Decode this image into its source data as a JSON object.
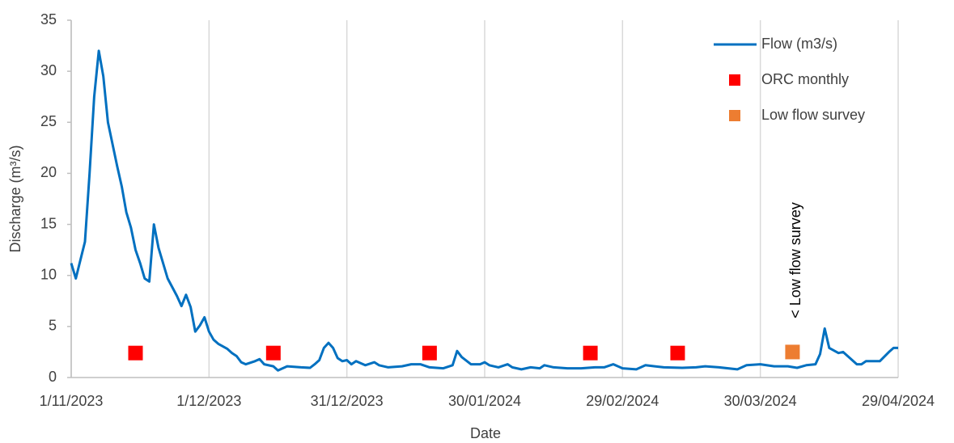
{
  "chart_data": {
    "type": "line",
    "x_label": "Date",
    "y_label": "Discharge (m³/s)",
    "annotation": "< Low flow survey",
    "xlim": [
      "2023-11-01",
      "2024-04-29"
    ],
    "xticks": [
      {
        "value": "2023-11-01",
        "label": "1/11/2023"
      },
      {
        "value": "2023-12-01",
        "label": "1/12/2023"
      },
      {
        "value": "2023-12-31",
        "label": "31/12/2023"
      },
      {
        "value": "2024-01-30",
        "label": "30/01/2024"
      },
      {
        "value": "2024-02-29",
        "label": "29/02/2024"
      },
      {
        "value": "2024-03-30",
        "label": "30/03/2024"
      },
      {
        "value": "2024-04-29",
        "label": "29/04/2024"
      }
    ],
    "ylim": [
      0,
      35
    ],
    "yticks": [
      0,
      5,
      10,
      15,
      20,
      25,
      30,
      35
    ],
    "grid": "x",
    "legend": "top-right",
    "series": [
      {
        "name": "Flow (m3/s)",
        "type": "line",
        "color": "#0070c0",
        "x": [
          "2023-11-01",
          "2023-11-02",
          "2023-11-04",
          "2023-11-05",
          "2023-11-06",
          "2023-11-07",
          "2023-11-08",
          "2023-11-09",
          "2023-11-11",
          "2023-11-12",
          "2023-11-13",
          "2023-11-14",
          "2023-11-15",
          "2023-11-16",
          "2023-11-17",
          "2023-11-18",
          "2023-11-19",
          "2023-11-20",
          "2023-11-22",
          "2023-11-24",
          "2023-11-25",
          "2023-11-26",
          "2023-11-27",
          "2023-11-28",
          "2023-11-29",
          "2023-11-30",
          "2023-12-01",
          "2023-12-02",
          "2023-12-03",
          "2023-12-05",
          "2023-12-06",
          "2023-12-07",
          "2023-12-08",
          "2023-12-09",
          "2023-12-11",
          "2023-12-12",
          "2023-12-13",
          "2023-12-15",
          "2023-12-16",
          "2023-12-18",
          "2023-12-21",
          "2023-12-23",
          "2023-12-24",
          "2023-12-25",
          "2023-12-26",
          "2023-12-27",
          "2023-12-28",
          "2023-12-29",
          "2023-12-30",
          "2023-12-31",
          "2024-01-01",
          "2024-01-02",
          "2024-01-04",
          "2024-01-06",
          "2024-01-07",
          "2024-01-09",
          "2024-01-12",
          "2024-01-14",
          "2024-01-16",
          "2024-01-18",
          "2024-01-21",
          "2024-01-23",
          "2024-01-24",
          "2024-01-25",
          "2024-01-27",
          "2024-01-29",
          "2024-01-30",
          "2024-01-31",
          "2024-02-02",
          "2024-02-04",
          "2024-02-05",
          "2024-02-07",
          "2024-02-09",
          "2024-02-11",
          "2024-02-12",
          "2024-02-14",
          "2024-02-17",
          "2024-02-20",
          "2024-02-23",
          "2024-02-25",
          "2024-02-27",
          "2024-02-29",
          "2024-03-03",
          "2024-03-05",
          "2024-03-07",
          "2024-03-09",
          "2024-03-13",
          "2024-03-16",
          "2024-03-18",
          "2024-03-21",
          "2024-03-25",
          "2024-03-27",
          "2024-03-30",
          "2024-04-02",
          "2024-04-05",
          "2024-04-07",
          "2024-04-09",
          "2024-04-11",
          "2024-04-12",
          "2024-04-13",
          "2024-04-14",
          "2024-04-16",
          "2024-04-17",
          "2024-04-19",
          "2024-04-20",
          "2024-04-21",
          "2024-04-22",
          "2024-04-25",
          "2024-04-27",
          "2024-04-28",
          "2024-04-29"
        ],
        "values": [
          11.2,
          9.7,
          13.3,
          20,
          27.5,
          32,
          29.5,
          25,
          20.7,
          18.7,
          16.2,
          14.7,
          12.5,
          11.2,
          9.7,
          9.4,
          15,
          12.7,
          9.7,
          8,
          7,
          8.1,
          6.9,
          4.5,
          5.1,
          5.9,
          4.5,
          3.7,
          3.3,
          2.8,
          2.4,
          2.1,
          1.5,
          1.3,
          1.6,
          1.8,
          1.3,
          1.1,
          0.7,
          1.1,
          1.0,
          0.95,
          1.3,
          1.7,
          2.9,
          3.4,
          2.9,
          1.9,
          1.6,
          1.7,
          1.3,
          1.6,
          1.2,
          1.5,
          1.2,
          1.0,
          1.1,
          1.3,
          1.3,
          1.0,
          0.9,
          1.2,
          2.6,
          2.0,
          1.3,
          1.3,
          1.5,
          1.2,
          1.0,
          1.3,
          1.0,
          0.8,
          1.0,
          0.9,
          1.2,
          1.0,
          0.9,
          0.9,
          1.0,
          1.0,
          1.3,
          0.9,
          0.8,
          1.2,
          1.1,
          1.0,
          0.95,
          1.0,
          1.1,
          1.0,
          0.8,
          1.2,
          1.3,
          1.1,
          1.1,
          0.95,
          1.2,
          1.3,
          2.3,
          4.8,
          2.9,
          2.4,
          2.5,
          1.7,
          1.3,
          1.3,
          1.6,
          1.6,
          2.5,
          2.9,
          2.9
        ]
      },
      {
        "name": "ORC monthly",
        "type": "scatter",
        "color": "#ff0000",
        "x": [
          "2023-11-15",
          "2023-12-15",
          "2024-01-18",
          "2024-02-22",
          "2024-03-12"
        ],
        "values": [
          2.4,
          2.4,
          2.4,
          2.4,
          2.4
        ]
      },
      {
        "name": "Low flow survey",
        "type": "scatter",
        "color": "#ed7d31",
        "x": [
          "2024-04-06"
        ],
        "values": [
          2.5
        ]
      }
    ]
  }
}
